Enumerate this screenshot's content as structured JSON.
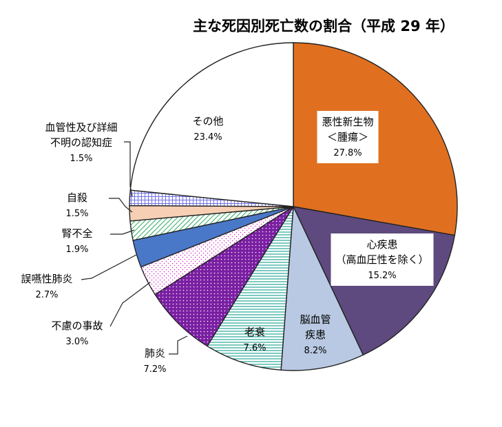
{
  "chart_data": {
    "type": "pie",
    "title": "主な死因別死亡数の割合（平成 29 年）",
    "start_angle_deg": 0,
    "direction": "clockwise",
    "slices": [
      {
        "id": "cancer",
        "lines": [
          "悪性新生物",
          "＜腫瘍＞"
        ],
        "value": 27.8,
        "pct_label": "27.8%",
        "color": "#E07020",
        "pattern": "solid"
      },
      {
        "id": "heart",
        "lines": [
          "心疾患",
          "（高血圧性を除く）"
        ],
        "value": 15.2,
        "pct_label": "15.2%",
        "color": "#5E4A7E",
        "pattern": "solid"
      },
      {
        "id": "cerebro",
        "lines": [
          "脳血管",
          "疾患"
        ],
        "value": 8.2,
        "pct_label": "8.2%",
        "color": "#B9C9E3",
        "pattern": "solid"
      },
      {
        "id": "senility",
        "lines": [
          "老衰"
        ],
        "value": 7.6,
        "pct_label": "7.6%",
        "color": "#26A898",
        "pattern": "hlines"
      },
      {
        "id": "pneumonia",
        "lines": [
          "肺炎"
        ],
        "value": 7.2,
        "pct_label": "7.2%",
        "color": "#7A1FA2",
        "pattern": "dots-dense"
      },
      {
        "id": "accident",
        "lines": [
          "不慮の事故"
        ],
        "value": 3.0,
        "pct_label": "3.0%",
        "color": "#D12CC4",
        "pattern": "dots-sparse"
      },
      {
        "id": "aspiration",
        "lines": [
          "誤嚥性肺炎"
        ],
        "value": 2.7,
        "pct_label": "2.7%",
        "color": "#4A78C8",
        "pattern": "solid"
      },
      {
        "id": "kidney",
        "lines": [
          "腎不全"
        ],
        "value": 1.9,
        "pct_label": "1.9%",
        "color": "#2EA860",
        "pattern": "diag"
      },
      {
        "id": "suicide",
        "lines": [
          "自殺"
        ],
        "value": 1.5,
        "pct_label": "1.5%",
        "color": "#F6CFB4",
        "pattern": "solid"
      },
      {
        "id": "dementia",
        "lines": [
          "血管性及び詳細",
          "不明の認知症"
        ],
        "value": 1.5,
        "pct_label": "1.5%",
        "color": "#7070E8",
        "pattern": "grid"
      },
      {
        "id": "other",
        "lines": [
          "その他"
        ],
        "value": 23.4,
        "pct_label": "23.4%",
        "color": "#FFFFFF",
        "pattern": "solid"
      }
    ]
  }
}
